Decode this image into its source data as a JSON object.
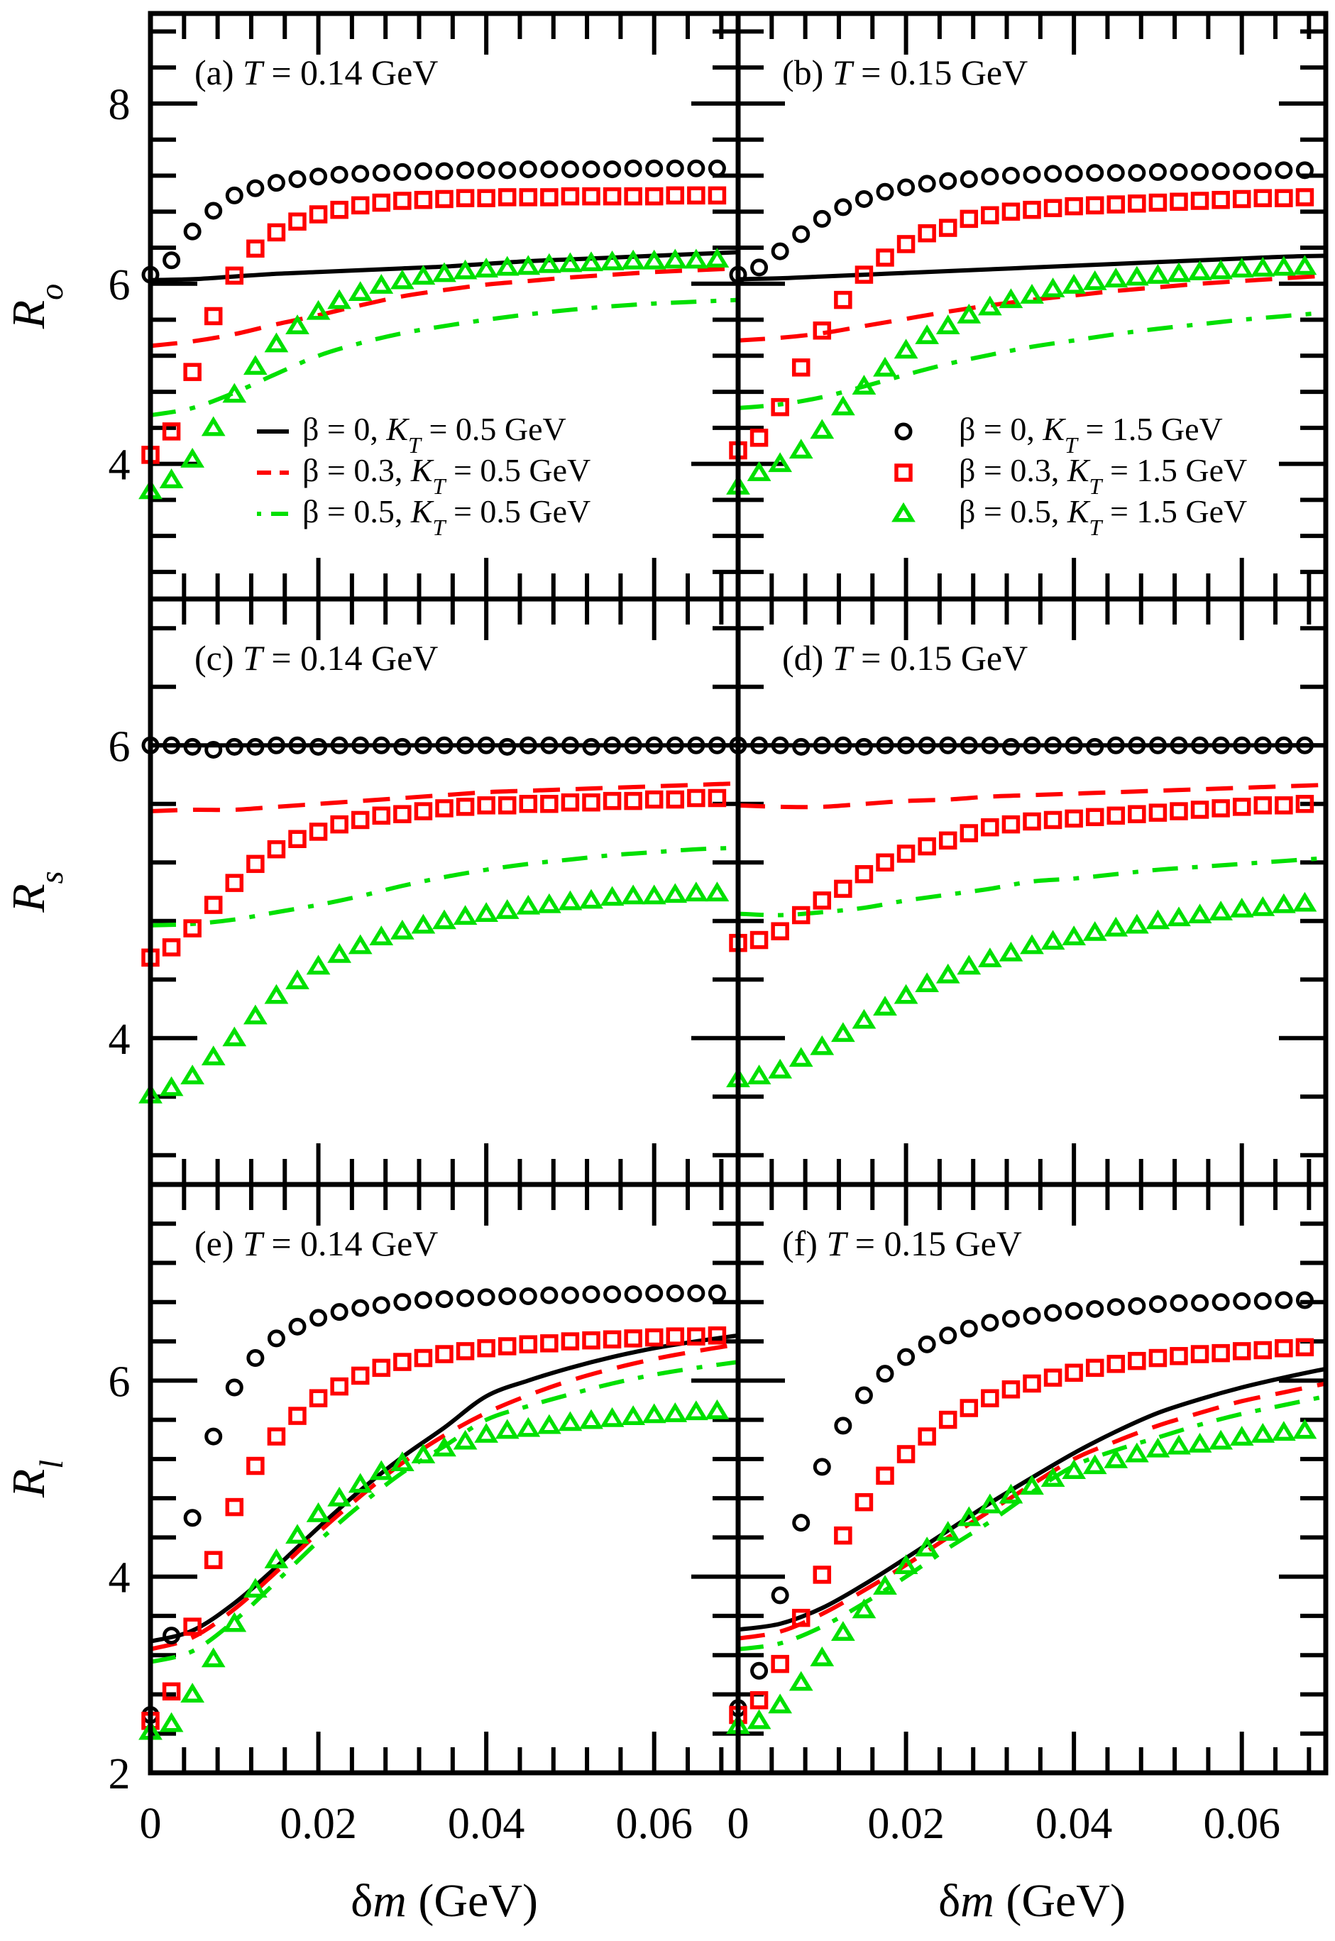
{
  "chart_data": {
    "type": "line",
    "layout": "3 rows x 2 columns, shared x axis per column, shared y axis per row",
    "xlabel": "δm (GeV)",
    "x_tick_labels": [
      "0",
      "0.02",
      "0.04",
      "0.06"
    ],
    "xlim": [
      0,
      0.07
    ],
    "x_major_step": 0.02,
    "x_minor_step": 0.004,
    "y_minor_step": 0.4,
    "colors": {
      "beta0": "#000000",
      "beta03": "#ff0000",
      "beta05": "#00e000"
    },
    "legend": {
      "placement_left": "lower-right of panel (a)",
      "placement_right": "lower-right of panel (b)",
      "lines": [
        {
          "label_prefix": "β = 0, ",
          "label_kt": "K",
          "label_sub": "T",
          "label_suffix": " = 0.5 GeV",
          "style": "solid",
          "color_key": "beta0"
        },
        {
          "label_prefix": "β = 0.3, ",
          "label_kt": "K",
          "label_sub": "T",
          "label_suffix": " = 0.5 GeV",
          "style": "dashed",
          "color_key": "beta03"
        },
        {
          "label_prefix": "β = 0.5, ",
          "label_kt": "K",
          "label_sub": "T",
          "label_suffix": " = 0.5 GeV",
          "style": "dashdot",
          "color_key": "beta05"
        }
      ],
      "markers": [
        {
          "label_prefix": "β = 0, ",
          "label_kt": "K",
          "label_sub": "T",
          "label_suffix": " = 1.5 GeV",
          "marker": "circle",
          "color_key": "beta0"
        },
        {
          "label_prefix": "β = 0.3, ",
          "label_kt": "K",
          "label_sub": "T",
          "label_suffix": " = 1.5 GeV",
          "marker": "square",
          "color_key": "beta03"
        },
        {
          "label_prefix": "β = 0.5, ",
          "label_kt": "K",
          "label_sub": "T",
          "label_suffix": " = 1.5 GeV",
          "marker": "triangle",
          "color_key": "beta05"
        }
      ]
    },
    "rows": [
      {
        "ylabel": "R",
        "ylabel_sub": "o",
        "ylim": [
          2.5,
          9
        ],
        "y_tick_labels": [
          "4",
          "6",
          "8"
        ],
        "y_ticks": [
          4,
          6,
          8
        ]
      },
      {
        "ylabel": "R",
        "ylabel_sub": "s",
        "ylim": [
          3,
          7
        ],
        "y_tick_labels": [
          "4",
          "6"
        ],
        "y_ticks": [
          4,
          6
        ]
      },
      {
        "ylabel": "R",
        "ylabel_sub": "l",
        "ylim": [
          2,
          8
        ],
        "y_tick_labels": [
          "2",
          "4",
          "6"
        ],
        "y_ticks": [
          2,
          4,
          6
        ]
      }
    ],
    "marker_x": [
      0,
      0.0025,
      0.005,
      0.0075,
      0.01,
      0.0125,
      0.015,
      0.0175,
      0.02,
      0.0225,
      0.025,
      0.0275,
      0.03,
      0.0325,
      0.035,
      0.0375,
      0.04,
      0.0425,
      0.045,
      0.0475,
      0.05,
      0.0525,
      0.055,
      0.0575,
      0.06,
      0.0625,
      0.065,
      0.0675
    ],
    "line_x": [
      0,
      0.005,
      0.01,
      0.015,
      0.02,
      0.025,
      0.03,
      0.035,
      0.04,
      0.045,
      0.05,
      0.055,
      0.06,
      0.065,
      0.07
    ],
    "panels": [
      {
        "id": "a",
        "row": 0,
        "col": 0,
        "label_prefix": "(a) ",
        "label_var": "T",
        "label_suffix": " = 0.14 GeV",
        "lines": {
          "beta0": [
            6.04,
            6.05,
            6.08,
            6.11,
            6.13,
            6.15,
            6.17,
            6.19,
            6.22,
            6.25,
            6.27,
            6.29,
            6.31,
            6.33,
            6.35
          ],
          "beta03": [
            5.31,
            5.36,
            5.44,
            5.55,
            5.65,
            5.76,
            5.86,
            5.93,
            5.99,
            6.03,
            6.07,
            6.1,
            6.13,
            6.15,
            6.17
          ],
          "beta05": [
            4.54,
            4.62,
            4.79,
            5.0,
            5.2,
            5.34,
            5.45,
            5.53,
            5.6,
            5.66,
            5.71,
            5.75,
            5.78,
            5.8,
            5.82
          ]
        },
        "markers": {
          "beta0": [
            6.1,
            6.26,
            6.58,
            6.81,
            6.98,
            7.06,
            7.12,
            7.16,
            7.19,
            7.21,
            7.22,
            7.23,
            7.24,
            7.25,
            7.25,
            7.26,
            7.26,
            7.26,
            7.27,
            7.27,
            7.27,
            7.27,
            7.27,
            7.28,
            7.28,
            7.28,
            7.28,
            7.28
          ],
          "beta03": [
            4.1,
            4.36,
            5.02,
            5.64,
            6.09,
            6.39,
            6.57,
            6.69,
            6.77,
            6.82,
            6.87,
            6.9,
            6.92,
            6.93,
            6.94,
            6.95,
            6.95,
            6.96,
            6.96,
            6.96,
            6.97,
            6.97,
            6.97,
            6.97,
            6.97,
            6.98,
            6.98,
            6.98
          ],
          "beta03_note": "",
          "beta05": [
            3.7,
            3.82,
            4.05,
            4.4,
            4.77,
            5.08,
            5.33,
            5.53,
            5.69,
            5.81,
            5.9,
            5.98,
            6.03,
            6.08,
            6.11,
            6.14,
            6.16,
            6.18,
            6.19,
            6.21,
            6.22,
            6.23,
            6.24,
            6.25,
            6.25,
            6.26,
            6.26,
            6.27
          ]
        }
      },
      {
        "id": "b",
        "row": 0,
        "col": 1,
        "label_prefix": "(b) ",
        "label_var": "T",
        "label_suffix": " = 0.15 GeV",
        "lines": {
          "beta0": [
            6.05,
            6.06,
            6.08,
            6.1,
            6.12,
            6.14,
            6.16,
            6.18,
            6.2,
            6.22,
            6.24,
            6.26,
            6.28,
            6.3,
            6.31
          ],
          "beta03": [
            5.37,
            5.4,
            5.45,
            5.53,
            5.61,
            5.69,
            5.76,
            5.82,
            5.87,
            5.92,
            5.96,
            6.0,
            6.03,
            6.06,
            6.09
          ],
          "beta05": [
            4.62,
            4.66,
            4.74,
            4.86,
            4.99,
            5.11,
            5.21,
            5.3,
            5.37,
            5.44,
            5.5,
            5.55,
            5.6,
            5.64,
            5.68
          ]
        },
        "markers": {
          "beta0": [
            6.1,
            6.18,
            6.36,
            6.55,
            6.72,
            6.85,
            6.94,
            7.02,
            7.07,
            7.11,
            7.14,
            7.16,
            7.19,
            7.2,
            7.21,
            7.22,
            7.22,
            7.23,
            7.23,
            7.23,
            7.24,
            7.24,
            7.24,
            7.25,
            7.25,
            7.25,
            7.26,
            7.26
          ],
          "beta03": [
            4.15,
            4.29,
            4.63,
            5.07,
            5.48,
            5.82,
            6.1,
            6.29,
            6.44,
            6.56,
            6.62,
            6.72,
            6.76,
            6.8,
            6.82,
            6.84,
            6.86,
            6.87,
            6.88,
            6.89,
            6.9,
            6.91,
            6.92,
            6.93,
            6.94,
            6.95,
            6.95,
            6.96
          ],
          "beta05": [
            3.75,
            3.9,
            4.0,
            4.15,
            4.37,
            4.63,
            4.86,
            5.06,
            5.26,
            5.42,
            5.53,
            5.65,
            5.74,
            5.82,
            5.87,
            5.94,
            5.98,
            6.02,
            6.05,
            6.07,
            6.09,
            6.11,
            6.13,
            6.14,
            6.16,
            6.17,
            6.18,
            6.19
          ]
        }
      },
      {
        "id": "c",
        "row": 1,
        "col": 0,
        "label_prefix": "(c) ",
        "label_var": "T",
        "label_suffix": " = 0.14 GeV",
        "lines": {
          "beta0": [
            6.0,
            6.0,
            6.0,
            6.0,
            6.0,
            6.0,
            6.0,
            6.0,
            6.0,
            6.0,
            6.0,
            6.0,
            6.0,
            6.0,
            6.0
          ],
          "beta03": [
            5.55,
            5.56,
            5.56,
            5.58,
            5.6,
            5.62,
            5.64,
            5.66,
            5.68,
            5.69,
            5.7,
            5.71,
            5.72,
            5.73,
            5.74
          ],
          "beta05": [
            4.77,
            4.78,
            4.81,
            4.86,
            4.91,
            4.97,
            5.04,
            5.1,
            5.15,
            5.19,
            5.22,
            5.25,
            5.27,
            5.29,
            5.3
          ]
        },
        "markers": {
          "beta0": [
            6.0,
            6.0,
            5.99,
            5.97,
            5.99,
            5.99,
            6.0,
            6.0,
            5.99,
            6.0,
            6.0,
            6.0,
            5.99,
            6.0,
            6.0,
            6.0,
            6.0,
            5.99,
            6.0,
            6.0,
            6.0,
            5.99,
            6.0,
            6.0,
            6.0,
            6.0,
            6.0,
            6.0
          ],
          "beta03": [
            4.55,
            4.62,
            4.75,
            4.91,
            5.06,
            5.19,
            5.29,
            5.36,
            5.41,
            5.46,
            5.49,
            5.52,
            5.53,
            5.55,
            5.57,
            5.58,
            5.59,
            5.59,
            5.6,
            5.6,
            5.61,
            5.61,
            5.62,
            5.62,
            5.63,
            5.63,
            5.64,
            5.64
          ],
          "beta05": [
            3.61,
            3.66,
            3.74,
            3.87,
            4.0,
            4.15,
            4.29,
            4.39,
            4.49,
            4.57,
            4.63,
            4.69,
            4.73,
            4.77,
            4.8,
            4.83,
            4.85,
            4.87,
            4.9,
            4.91,
            4.93,
            4.94,
            4.96,
            4.97,
            4.97,
            4.98,
            4.99,
            4.99
          ]
        }
      },
      {
        "id": "d",
        "row": 1,
        "col": 1,
        "label_prefix": "(d) ",
        "label_var": "T",
        "label_suffix": " = 0.15 GeV",
        "lines": {
          "beta0": [
            6.0,
            6.0,
            6.0,
            6.0,
            6.0,
            6.0,
            6.0,
            6.0,
            6.0,
            6.0,
            6.0,
            6.0,
            6.0,
            6.0,
            6.0
          ],
          "beta03": [
            5.59,
            5.58,
            5.58,
            5.6,
            5.62,
            5.63,
            5.65,
            5.66,
            5.67,
            5.68,
            5.69,
            5.7,
            5.71,
            5.72,
            5.73
          ],
          "beta05": [
            4.85,
            4.84,
            4.86,
            4.89,
            4.94,
            4.98,
            5.02,
            5.07,
            5.09,
            5.12,
            5.15,
            5.17,
            5.19,
            5.21,
            5.23
          ]
        },
        "markers": {
          "beta0": [
            6.0,
            6.0,
            6.0,
            5.99,
            6.0,
            6.0,
            5.99,
            6.0,
            6.0,
            6.0,
            6.0,
            6.0,
            6.0,
            5.99,
            6.0,
            6.0,
            6.0,
            5.99,
            6.0,
            6.0,
            6.0,
            6.0,
            6.0,
            6.0,
            6.0,
            6.0,
            6.0,
            6.0
          ],
          "beta03": [
            4.65,
            4.67,
            4.73,
            4.84,
            4.94,
            5.02,
            5.12,
            5.2,
            5.26,
            5.31,
            5.35,
            5.4,
            5.44,
            5.46,
            5.48,
            5.49,
            5.5,
            5.51,
            5.52,
            5.53,
            5.54,
            5.55,
            5.56,
            5.57,
            5.58,
            5.59,
            5.59,
            5.6
          ],
          "beta05": [
            3.72,
            3.74,
            3.78,
            3.86,
            3.94,
            4.03,
            4.12,
            4.21,
            4.29,
            4.37,
            4.43,
            4.49,
            4.54,
            4.58,
            4.63,
            4.66,
            4.69,
            4.72,
            4.75,
            4.77,
            4.8,
            4.82,
            4.84,
            4.86,
            4.88,
            4.89,
            4.91,
            4.92
          ]
        }
      },
      {
        "id": "e",
        "row": 2,
        "col": 0,
        "label_prefix": "(e) ",
        "label_var": "T",
        "label_suffix": " = 0.14 GeV",
        "lines": {
          "beta0": [
            3.34,
            3.45,
            3.73,
            4.1,
            4.5,
            4.88,
            5.22,
            5.52,
            5.84,
            6.0,
            6.13,
            6.24,
            6.33,
            6.4,
            6.46
          ],
          "beta03": [
            3.26,
            3.38,
            3.67,
            4.05,
            4.45,
            4.82,
            5.16,
            5.44,
            5.67,
            5.85,
            6.0,
            6.12,
            6.22,
            6.3,
            6.37
          ],
          "beta05": [
            3.13,
            3.24,
            3.55,
            3.95,
            4.36,
            4.73,
            5.06,
            5.33,
            5.6,
            5.74,
            5.86,
            5.97,
            6.06,
            6.13,
            6.19
          ]
        },
        "markers": {
          "beta0": [
            2.59,
            3.4,
            4.6,
            5.43,
            5.93,
            6.23,
            6.43,
            6.55,
            6.64,
            6.7,
            6.74,
            6.77,
            6.8,
            6.82,
            6.83,
            6.84,
            6.85,
            6.86,
            6.86,
            6.87,
            6.87,
            6.88,
            6.88,
            6.88,
            6.89,
            6.89,
            6.89,
            6.89
          ],
          "beta03": [
            2.53,
            2.83,
            3.49,
            4.17,
            4.71,
            5.13,
            5.43,
            5.64,
            5.82,
            5.94,
            6.05,
            6.13,
            6.19,
            6.23,
            6.27,
            6.3,
            6.33,
            6.35,
            6.37,
            6.38,
            6.4,
            6.41,
            6.42,
            6.43,
            6.44,
            6.45,
            6.45,
            6.46
          ],
          "beta05": [
            2.42,
            2.5,
            2.8,
            3.16,
            3.52,
            3.87,
            4.17,
            4.42,
            4.64,
            4.8,
            4.94,
            5.07,
            5.16,
            5.24,
            5.31,
            5.38,
            5.45,
            5.49,
            5.51,
            5.54,
            5.57,
            5.59,
            5.61,
            5.63,
            5.65,
            5.66,
            5.68,
            5.69
          ]
        }
      },
      {
        "id": "f",
        "row": 2,
        "col": 1,
        "label_prefix": "(f) ",
        "label_var": "T",
        "label_suffix": " = 0.15 GeV",
        "lines": {
          "beta0": [
            3.46,
            3.52,
            3.68,
            3.92,
            4.19,
            4.47,
            4.75,
            5.01,
            5.26,
            5.48,
            5.67,
            5.81,
            5.93,
            6.03,
            6.12
          ],
          "beta03": [
            3.37,
            3.44,
            3.62,
            3.86,
            4.12,
            4.4,
            4.67,
            4.94,
            5.2,
            5.38,
            5.54,
            5.67,
            5.79,
            5.88,
            5.97
          ],
          "beta05": [
            3.26,
            3.32,
            3.49,
            3.73,
            4.0,
            4.29,
            4.56,
            4.86,
            5.13,
            5.29,
            5.42,
            5.55,
            5.66,
            5.75,
            5.84
          ]
        },
        "markers": {
          "beta0": [
            2.66,
            3.04,
            3.81,
            4.55,
            5.12,
            5.54,
            5.85,
            6.07,
            6.24,
            6.37,
            6.46,
            6.53,
            6.59,
            6.63,
            6.66,
            6.69,
            6.71,
            6.73,
            6.75,
            6.76,
            6.78,
            6.79,
            6.79,
            6.8,
            6.81,
            6.81,
            6.82,
            6.82
          ],
          "beta03": [
            2.59,
            2.74,
            3.11,
            3.58,
            4.02,
            4.42,
            4.76,
            5.03,
            5.25,
            5.43,
            5.6,
            5.72,
            5.82,
            5.91,
            5.97,
            6.03,
            6.08,
            6.13,
            6.17,
            6.2,
            6.23,
            6.25,
            6.27,
            6.28,
            6.3,
            6.31,
            6.33,
            6.34
          ],
          "beta05": [
            2.48,
            2.53,
            2.69,
            2.92,
            3.17,
            3.43,
            3.66,
            3.9,
            4.11,
            4.29,
            4.45,
            4.6,
            4.73,
            4.83,
            4.92,
            5.0,
            5.08,
            5.13,
            5.19,
            5.25,
            5.3,
            5.33,
            5.35,
            5.38,
            5.42,
            5.45,
            5.47,
            5.49
          ]
        }
      }
    ]
  }
}
